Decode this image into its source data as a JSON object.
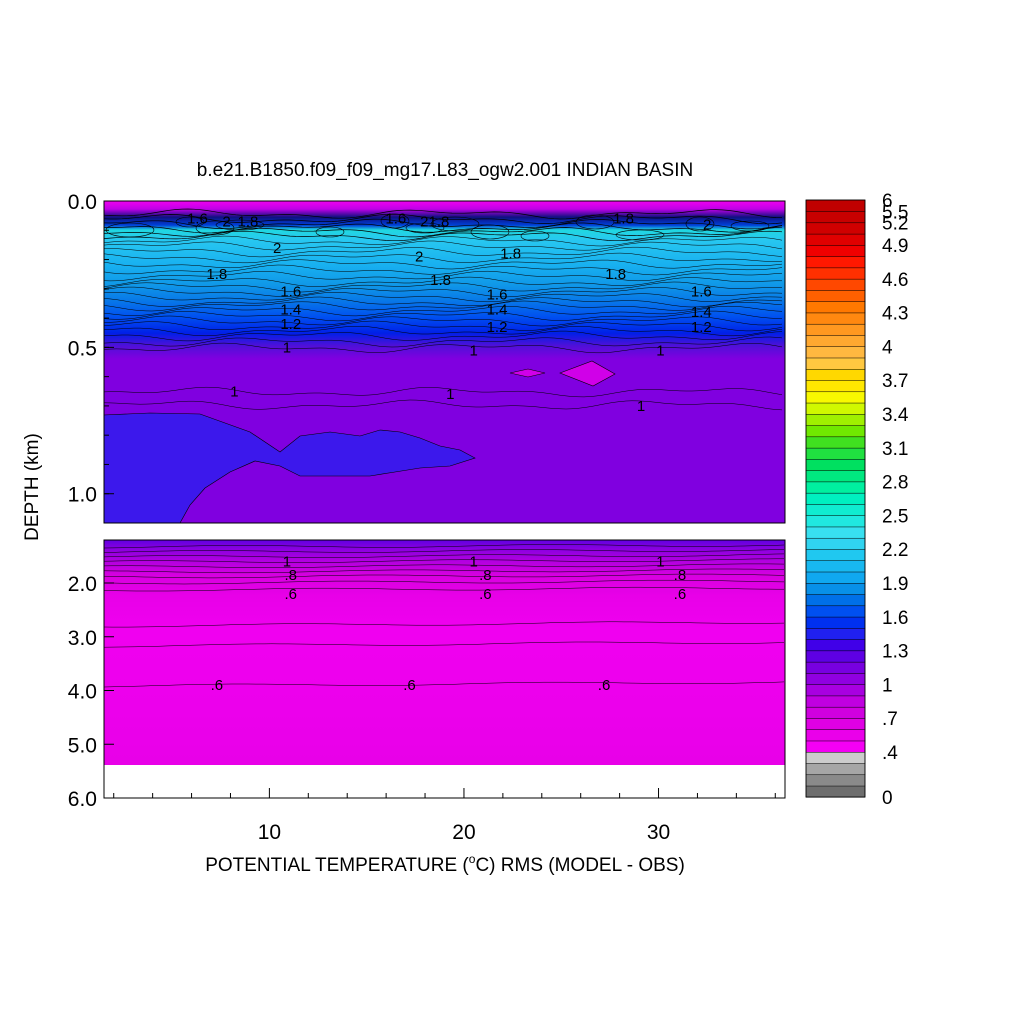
{
  "chart_data": {
    "type": "contour",
    "title": "b.e21.B1850.f09_f09_mg17.L83_ogw2.001 INDIAN BASIN",
    "xlabel_prefix": "POTENTIAL TEMPERATURE (",
    "xlabel_degree": "o",
    "xlabel_suffix": "C) RMS (MODEL - OBS)",
    "ylabel": "DEPTH (km)",
    "xlim": [
      1.5,
      36.5
    ],
    "x_ticks": [
      10,
      20,
      30
    ],
    "x_tick_labels": [
      "10",
      "20",
      "30"
    ],
    "top_panel": {
      "ylim": [
        0.0,
        1.1
      ],
      "y_ticks": [
        0.0,
        0.5,
        1.0
      ],
      "y_tick_labels": [
        "0.0",
        "0.5",
        "1.0"
      ],
      "contour_labels": [
        {
          "x": 6.3,
          "y": 0.06,
          "text": "1.6"
        },
        {
          "x": 7.8,
          "y": 0.07,
          "text": "2"
        },
        {
          "x": 8.9,
          "y": 0.07,
          "text": "1.8"
        },
        {
          "x": 16.5,
          "y": 0.06,
          "text": "1.6"
        },
        {
          "x": 18.5,
          "y": 0.07,
          "text": "21.8"
        },
        {
          "x": 28.2,
          "y": 0.06,
          "text": "1.8"
        },
        {
          "x": 32.5,
          "y": 0.08,
          "text": "2"
        },
        {
          "x": 10.4,
          "y": 0.16,
          "text": "2"
        },
        {
          "x": 17.7,
          "y": 0.19,
          "text": "2"
        },
        {
          "x": 22.4,
          "y": 0.18,
          "text": "1.8"
        },
        {
          "x": 7.3,
          "y": 0.25,
          "text": "1.8"
        },
        {
          "x": 18.8,
          "y": 0.27,
          "text": "1.8"
        },
        {
          "x": 27.8,
          "y": 0.25,
          "text": "1.8"
        },
        {
          "x": 11.1,
          "y": 0.31,
          "text": "1.6"
        },
        {
          "x": 21.7,
          "y": 0.32,
          "text": "1.6"
        },
        {
          "x": 32.2,
          "y": 0.31,
          "text": "1.6"
        },
        {
          "x": 11.1,
          "y": 0.37,
          "text": "1.4"
        },
        {
          "x": 21.7,
          "y": 0.37,
          "text": "1.4"
        },
        {
          "x": 32.2,
          "y": 0.38,
          "text": "1.4"
        },
        {
          "x": 11.1,
          "y": 0.42,
          "text": "1.2"
        },
        {
          "x": 21.7,
          "y": 0.43,
          "text": "1.2"
        },
        {
          "x": 32.2,
          "y": 0.43,
          "text": "1.2"
        },
        {
          "x": 10.9,
          "y": 0.5,
          "text": "1"
        },
        {
          "x": 20.5,
          "y": 0.51,
          "text": "1"
        },
        {
          "x": 30.1,
          "y": 0.51,
          "text": "1"
        },
        {
          "x": 8.2,
          "y": 0.65,
          "text": "1"
        },
        {
          "x": 19.3,
          "y": 0.66,
          "text": "1"
        },
        {
          "x": 29.1,
          "y": 0.7,
          "text": "1"
        }
      ]
    },
    "bottom_panel": {
      "ylim": [
        1.2,
        6.0
      ],
      "y_ticks": [
        2.0,
        3.0,
        4.0,
        5.0,
        6.0
      ],
      "y_tick_labels": [
        "2.0",
        "3.0",
        "4.0",
        "5.0",
        "6.0"
      ],
      "data_bottom_depth": 5.35,
      "contour_labels": [
        {
          "x": 10.9,
          "y": 1.6,
          "text": "1"
        },
        {
          "x": 20.5,
          "y": 1.6,
          "text": "1"
        },
        {
          "x": 30.1,
          "y": 1.6,
          "text": "1"
        },
        {
          "x": 11.1,
          "y": 1.85,
          "text": ".8"
        },
        {
          "x": 21.1,
          "y": 1.85,
          "text": ".8"
        },
        {
          "x": 31.1,
          "y": 1.85,
          "text": ".8"
        },
        {
          "x": 11.1,
          "y": 2.2,
          "text": ".6"
        },
        {
          "x": 21.1,
          "y": 2.2,
          "text": ".6"
        },
        {
          "x": 31.1,
          "y": 2.2,
          "text": ".6"
        },
        {
          "x": 7.3,
          "y": 3.9,
          "text": ".6"
        },
        {
          "x": 17.2,
          "y": 3.9,
          "text": ".6"
        },
        {
          "x": 27.2,
          "y": 3.9,
          "text": ".6"
        }
      ]
    },
    "colorbar": {
      "levels": [
        0,
        0.1,
        0.2,
        0.3,
        0.4,
        0.5,
        0.6,
        0.7,
        0.8,
        0.9,
        1,
        1.1,
        1.2,
        1.3,
        1.4,
        1.5,
        1.6,
        1.7,
        1.8,
        1.9,
        2,
        2.1,
        2.2,
        2.3,
        2.4,
        2.5,
        2.6,
        2.7,
        2.8,
        2.9,
        3,
        3.1,
        3.2,
        3.3,
        3.4,
        3.5,
        3.6,
        3.7,
        3.8,
        3.9,
        4,
        4.1,
        4.2,
        4.3,
        4.4,
        4.5,
        4.6,
        4.7,
        4.8,
        4.9,
        5,
        5.2,
        5.5,
        6
      ],
      "tick_labels": [
        "0",
        ".4",
        ".7",
        "1",
        "1.3",
        "1.6",
        "1.9",
        "2.2",
        "2.5",
        "2.8",
        "3.1",
        "3.4",
        "3.7",
        "4",
        "4.3",
        "4.6",
        "4.9",
        "5.2",
        "5.5",
        "6"
      ],
      "tick_label_levels": [
        0,
        0.4,
        0.7,
        1,
        1.3,
        1.6,
        1.9,
        2.2,
        2.5,
        2.8,
        3.1,
        3.4,
        3.7,
        4,
        4.3,
        4.6,
        4.9,
        5.2,
        5.5,
        6
      ]
    }
  }
}
